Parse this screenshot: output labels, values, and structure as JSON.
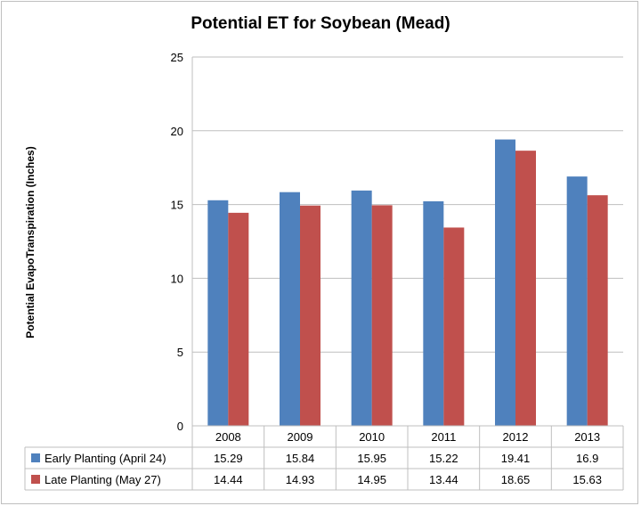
{
  "chart_data": {
    "type": "bar",
    "title": "Potential ET for Soybean (Mead)",
    "xlabel": "",
    "ylabel": "Potential EvapoTranspiration (Inches)",
    "categories": [
      "2008",
      "2009",
      "2010",
      "2011",
      "2012",
      "2013"
    ],
    "series": [
      {
        "name": "Early Planting (April 24)",
        "color": "#4f81bd",
        "values": [
          15.29,
          15.84,
          15.95,
          15.22,
          19.41,
          16.9
        ],
        "labels": [
          "15.29",
          "15.84",
          "15.95",
          "15.22",
          "19.41",
          "16.9"
        ]
      },
      {
        "name": "Late Planting (May 27)",
        "color": "#c0504d",
        "values": [
          14.44,
          14.93,
          14.95,
          13.44,
          18.65,
          15.63
        ],
        "labels": [
          "14.44",
          "14.93",
          "14.95",
          "13.44",
          "18.65",
          "15.63"
        ]
      }
    ],
    "ylim": [
      0,
      25
    ],
    "yticks": [
      "0",
      "5",
      "10",
      "15",
      "20",
      "25"
    ],
    "grid": true,
    "legend": "data-table"
  }
}
